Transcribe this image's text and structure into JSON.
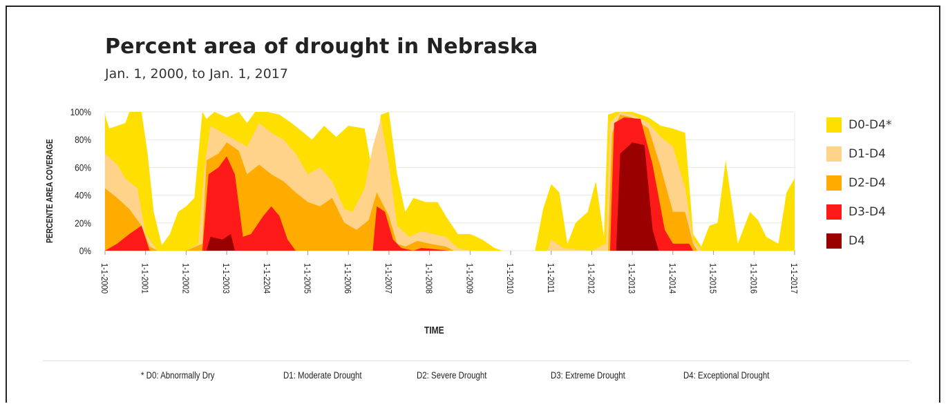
{
  "chart_data": {
    "type": "area",
    "title": "Percent area of drought in Nebraska",
    "subtitle": "Jan. 1, 2000, to Jan. 1, 2017",
    "xlabel": "TIME",
    "ylabel": "PERCENTE AREA COVERAGE",
    "ylim": [
      0,
      100
    ],
    "xlim": [
      2000,
      2017
    ],
    "y_ticks": [
      "100%",
      "80%",
      "60%",
      "40%",
      "20%",
      "0%"
    ],
    "x_ticks": [
      "1-1-2000",
      "1-1-2001",
      "1-1-2002",
      "1-1-2003",
      "1-1-2204",
      "1-1-2005",
      "1-1-2006",
      "1-1-2007",
      "1-1-2008",
      "1-1-2009",
      "1-1-2010",
      "1-1-2011",
      "1-1-2012",
      "1-1-2013",
      "1-1-2014",
      "1-1-2015",
      "1-1-2016",
      "1-1-2017"
    ],
    "grid": true,
    "legend_position": "right",
    "series": [
      {
        "name": "D0-D4*",
        "color": "#ffdf00",
        "points": [
          [
            2000.0,
            98
          ],
          [
            2000.1,
            88
          ],
          [
            2000.3,
            90
          ],
          [
            2000.5,
            92
          ],
          [
            2000.6,
            100
          ],
          [
            2000.9,
            100
          ],
          [
            2001.05,
            70
          ],
          [
            2001.2,
            28
          ],
          [
            2001.4,
            4
          ],
          [
            2001.6,
            12
          ],
          [
            2001.8,
            28
          ],
          [
            2002.0,
            32
          ],
          [
            2002.2,
            38
          ],
          [
            2002.4,
            100
          ],
          [
            2002.5,
            95
          ],
          [
            2002.7,
            100
          ],
          [
            2003.0,
            96
          ],
          [
            2003.3,
            100
          ],
          [
            2003.5,
            92
          ],
          [
            2003.7,
            100
          ],
          [
            2004.0,
            100
          ],
          [
            2004.3,
            98
          ],
          [
            2004.6,
            92
          ],
          [
            2004.9,
            85
          ],
          [
            2005.1,
            80
          ],
          [
            2005.4,
            90
          ],
          [
            2005.7,
            82
          ],
          [
            2006.0,
            90
          ],
          [
            2006.4,
            88
          ],
          [
            2006.6,
            55
          ],
          [
            2006.8,
            98
          ],
          [
            2007.0,
            100
          ],
          [
            2007.2,
            55
          ],
          [
            2007.4,
            28
          ],
          [
            2007.6,
            38
          ],
          [
            2007.9,
            35
          ],
          [
            2008.2,
            35
          ],
          [
            2008.4,
            25
          ],
          [
            2008.7,
            12
          ],
          [
            2009.0,
            12
          ],
          [
            2009.3,
            8
          ],
          [
            2009.6,
            2
          ],
          [
            2009.8,
            0
          ],
          [
            2010.4,
            0
          ],
          [
            2010.6,
            0
          ],
          [
            2010.8,
            30
          ],
          [
            2011.0,
            48
          ],
          [
            2011.2,
            42
          ],
          [
            2011.4,
            5
          ],
          [
            2011.6,
            20
          ],
          [
            2011.9,
            28
          ],
          [
            2012.1,
            50
          ],
          [
            2012.3,
            10
          ],
          [
            2012.4,
            98
          ],
          [
            2012.6,
            100
          ],
          [
            2013.0,
            100
          ],
          [
            2013.4,
            96
          ],
          [
            2013.7,
            90
          ],
          [
            2014.0,
            88
          ],
          [
            2014.3,
            85
          ],
          [
            2014.5,
            12
          ],
          [
            2014.7,
            3
          ],
          [
            2014.9,
            18
          ],
          [
            2015.1,
            20
          ],
          [
            2015.3,
            65
          ],
          [
            2015.6,
            5
          ],
          [
            2015.9,
            28
          ],
          [
            2016.1,
            22
          ],
          [
            2016.3,
            10
          ],
          [
            2016.6,
            5
          ],
          [
            2016.8,
            42
          ],
          [
            2017.0,
            52
          ]
        ]
      },
      {
        "name": "D1-D4",
        "color": "#ffd38a",
        "points": [
          [
            2000.0,
            70
          ],
          [
            2000.3,
            62
          ],
          [
            2000.5,
            52
          ],
          [
            2000.8,
            45
          ],
          [
            2001.0,
            12
          ],
          [
            2001.3,
            0
          ],
          [
            2002.0,
            0
          ],
          [
            2002.3,
            5
          ],
          [
            2002.45,
            60
          ],
          [
            2002.6,
            90
          ],
          [
            2002.9,
            85
          ],
          [
            2003.2,
            80
          ],
          [
            2003.5,
            75
          ],
          [
            2003.8,
            92
          ],
          [
            2004.1,
            85
          ],
          [
            2004.4,
            80
          ],
          [
            2004.7,
            70
          ],
          [
            2005.0,
            55
          ],
          [
            2005.3,
            60
          ],
          [
            2005.6,
            50
          ],
          [
            2005.9,
            30
          ],
          [
            2006.1,
            28
          ],
          [
            2006.4,
            45
          ],
          [
            2006.6,
            75
          ],
          [
            2006.8,
            95
          ],
          [
            2007.0,
            62
          ],
          [
            2007.2,
            18
          ],
          [
            2007.5,
            10
          ],
          [
            2007.8,
            14
          ],
          [
            2008.1,
            12
          ],
          [
            2008.4,
            10
          ],
          [
            2008.7,
            2
          ],
          [
            2009.0,
            0
          ],
          [
            2010.9,
            0
          ],
          [
            2011.0,
            8
          ],
          [
            2011.3,
            2
          ],
          [
            2012.0,
            0
          ],
          [
            2012.35,
            5
          ],
          [
            2012.45,
            92
          ],
          [
            2012.7,
            100
          ],
          [
            2013.0,
            98
          ],
          [
            2013.4,
            92
          ],
          [
            2013.7,
            82
          ],
          [
            2014.0,
            75
          ],
          [
            2014.3,
            45
          ],
          [
            2014.5,
            8
          ],
          [
            2014.7,
            0
          ],
          [
            2016.9,
            0
          ],
          [
            2017.0,
            0
          ]
        ]
      },
      {
        "name": "D2-D4",
        "color": "#ffab00",
        "points": [
          [
            2000.0,
            45
          ],
          [
            2000.3,
            38
          ],
          [
            2000.6,
            30
          ],
          [
            2000.9,
            18
          ],
          [
            2001.1,
            3
          ],
          [
            2001.3,
            0
          ],
          [
            2002.0,
            0
          ],
          [
            2002.4,
            5
          ],
          [
            2002.5,
            65
          ],
          [
            2002.8,
            70
          ],
          [
            2003.0,
            78
          ],
          [
            2003.3,
            72
          ],
          [
            2003.5,
            55
          ],
          [
            2003.8,
            62
          ],
          [
            2004.1,
            55
          ],
          [
            2004.4,
            50
          ],
          [
            2004.7,
            42
          ],
          [
            2005.0,
            35
          ],
          [
            2005.3,
            32
          ],
          [
            2005.6,
            38
          ],
          [
            2005.9,
            20
          ],
          [
            2006.2,
            15
          ],
          [
            2006.5,
            22
          ],
          [
            2006.7,
            42
          ],
          [
            2007.0,
            25
          ],
          [
            2007.2,
            5
          ],
          [
            2007.4,
            3
          ],
          [
            2007.7,
            7
          ],
          [
            2008.0,
            5
          ],
          [
            2008.4,
            3
          ],
          [
            2008.6,
            0
          ],
          [
            2012.4,
            0
          ],
          [
            2012.5,
            85
          ],
          [
            2012.7,
            98
          ],
          [
            2013.0,
            96
          ],
          [
            2013.4,
            88
          ],
          [
            2013.7,
            60
          ],
          [
            2014.0,
            28
          ],
          [
            2014.3,
            28
          ],
          [
            2014.5,
            5
          ],
          [
            2014.6,
            0
          ],
          [
            2017.0,
            0
          ]
        ]
      },
      {
        "name": "D3-D4",
        "color": "#ff1a1a",
        "points": [
          [
            2000.0,
            0
          ],
          [
            2000.3,
            5
          ],
          [
            2000.6,
            12
          ],
          [
            2000.9,
            18
          ],
          [
            2001.1,
            0
          ],
          [
            2002.4,
            0
          ],
          [
            2002.55,
            55
          ],
          [
            2002.8,
            60
          ],
          [
            2003.0,
            68
          ],
          [
            2003.2,
            55
          ],
          [
            2003.4,
            10
          ],
          [
            2003.6,
            12
          ],
          [
            2003.9,
            25
          ],
          [
            2004.1,
            32
          ],
          [
            2004.3,
            25
          ],
          [
            2004.5,
            8
          ],
          [
            2004.7,
            0
          ],
          [
            2006.6,
            0
          ],
          [
            2006.7,
            32
          ],
          [
            2006.9,
            28
          ],
          [
            2007.1,
            8
          ],
          [
            2007.3,
            2
          ],
          [
            2007.6,
            0
          ],
          [
            2007.8,
            2
          ],
          [
            2008.5,
            0
          ],
          [
            2012.45,
            0
          ],
          [
            2012.55,
            92
          ],
          [
            2012.8,
            96
          ],
          [
            2013.2,
            95
          ],
          [
            2013.5,
            62
          ],
          [
            2013.8,
            15
          ],
          [
            2014.0,
            5
          ],
          [
            2014.4,
            5
          ],
          [
            2014.5,
            0
          ],
          [
            2017.0,
            0
          ]
        ]
      },
      {
        "name": "D4",
        "color": "#9a0000",
        "points": [
          [
            2000.0,
            0
          ],
          [
            2002.5,
            0
          ],
          [
            2002.6,
            10
          ],
          [
            2002.9,
            8
          ],
          [
            2003.1,
            12
          ],
          [
            2003.2,
            0
          ],
          [
            2012.6,
            0
          ],
          [
            2012.7,
            70
          ],
          [
            2013.0,
            78
          ],
          [
            2013.3,
            76
          ],
          [
            2013.5,
            15
          ],
          [
            2013.65,
            0
          ],
          [
            2017.0,
            0
          ]
        ]
      }
    ]
  },
  "footnotes": [
    "* D0: Abnormally Dry",
    "D1: Moderate Drought",
    "D2: Severe Drought",
    "D3: Extreme Drought",
    "D4: Exceptional Drought"
  ]
}
